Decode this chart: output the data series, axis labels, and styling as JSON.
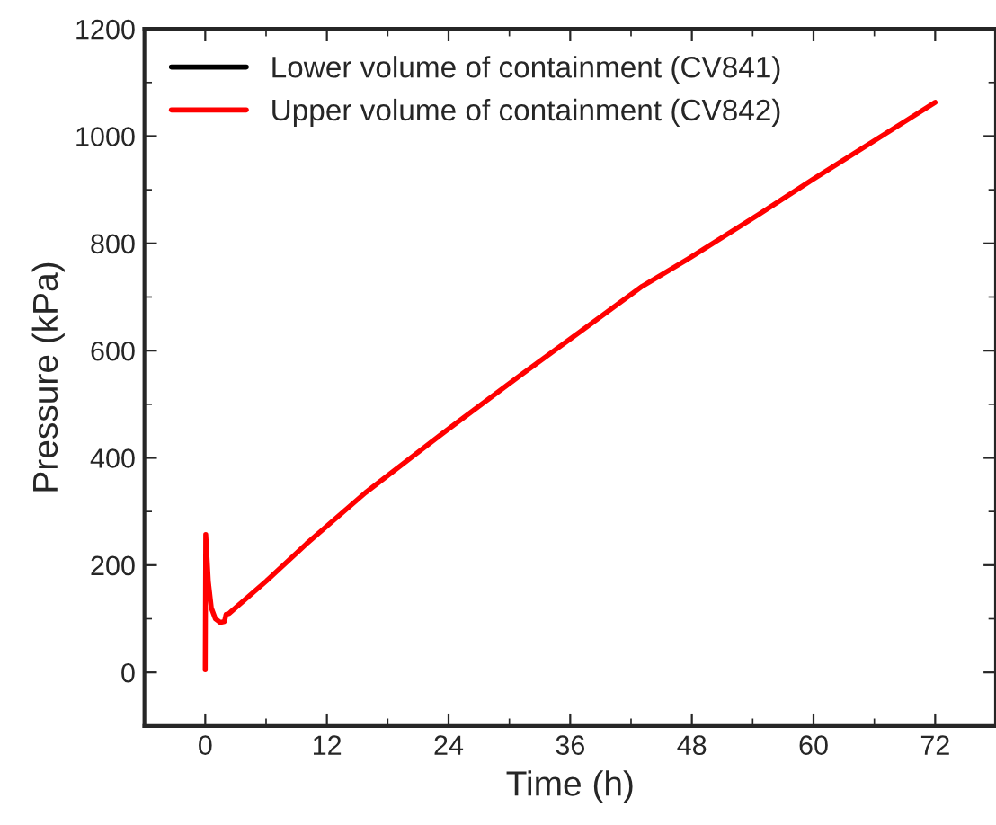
{
  "chart_data": {
    "type": "line",
    "xlabel": "Time (h)",
    "ylabel": "Pressure (kPa)",
    "xlim": [
      -6,
      78
    ],
    "xticks": [
      0,
      12,
      24,
      36,
      48,
      60,
      72
    ],
    "ylim": [
      -100,
      1200
    ],
    "yticks": [
      0,
      200,
      400,
      600,
      800,
      1000,
      1200
    ],
    "legend": "top left",
    "grid": false,
    "series": [
      {
        "name": "Lower volume of containment (CV841)",
        "color": "#000000"
      },
      {
        "name": "Upper volume of containment (CV842)",
        "color": "#ff0000",
        "x": [
          0,
          0.05,
          0.3,
          0.6,
          1,
          1.5,
          1.9,
          2.05,
          2.35,
          6,
          10,
          15.8,
          23.5,
          31.1,
          37.6,
          43.1,
          47.8,
          54.6,
          59.9,
          72
        ],
        "values": [
          5,
          257,
          170,
          120,
          100,
          93,
          95,
          108,
          110,
          170,
          240,
          335,
          447,
          554,
          644,
          720,
          773,
          854,
          919,
          1063
        ]
      }
    ]
  }
}
